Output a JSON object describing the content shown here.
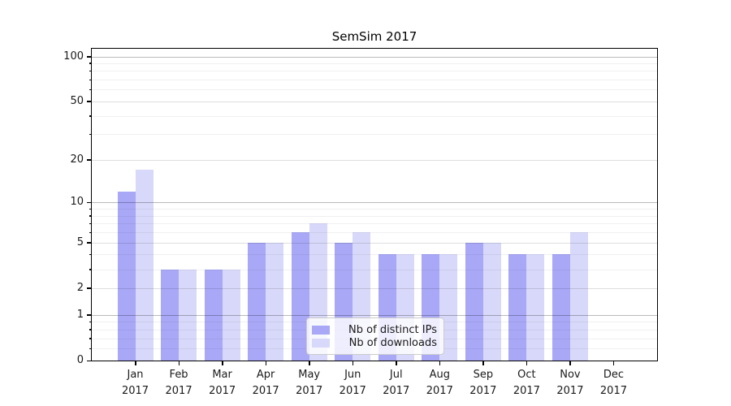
{
  "chart_data": {
    "type": "bar",
    "title": "SemSim 2017",
    "xlabel": "",
    "ylabel": "",
    "categories": [
      "Jan 2017",
      "Feb 2017",
      "Mar 2017",
      "Apr 2017",
      "May 2017",
      "Jun 2017",
      "Jul 2017",
      "Aug 2017",
      "Sep 2017",
      "Oct 2017",
      "Nov 2017",
      "Dec 2017"
    ],
    "series": [
      {
        "name": "Nb of distinct IPs",
        "color": "#a8a8f7",
        "values": [
          12,
          3,
          3,
          5,
          6,
          5,
          4,
          4,
          5,
          4,
          4,
          0
        ]
      },
      {
        "name": "Nb of downloads",
        "color": "#d8d8fa",
        "values": [
          17,
          3,
          3,
          5,
          7,
          6,
          4,
          4,
          5,
          4,
          6,
          0
        ]
      }
    ],
    "yscale": "log1p",
    "ylim": [
      0,
      113
    ],
    "yticks": [
      0,
      1,
      2,
      5,
      10,
      20,
      50,
      100
    ],
    "yticks_decade": [
      1,
      10,
      100
    ],
    "yticks_minor": [
      0.2,
      0.4,
      0.6,
      0.8,
      3,
      4,
      6,
      7,
      8,
      9,
      30,
      40,
      60,
      70,
      80,
      90
    ],
    "grid": true,
    "legend_position": "lower center"
  }
}
